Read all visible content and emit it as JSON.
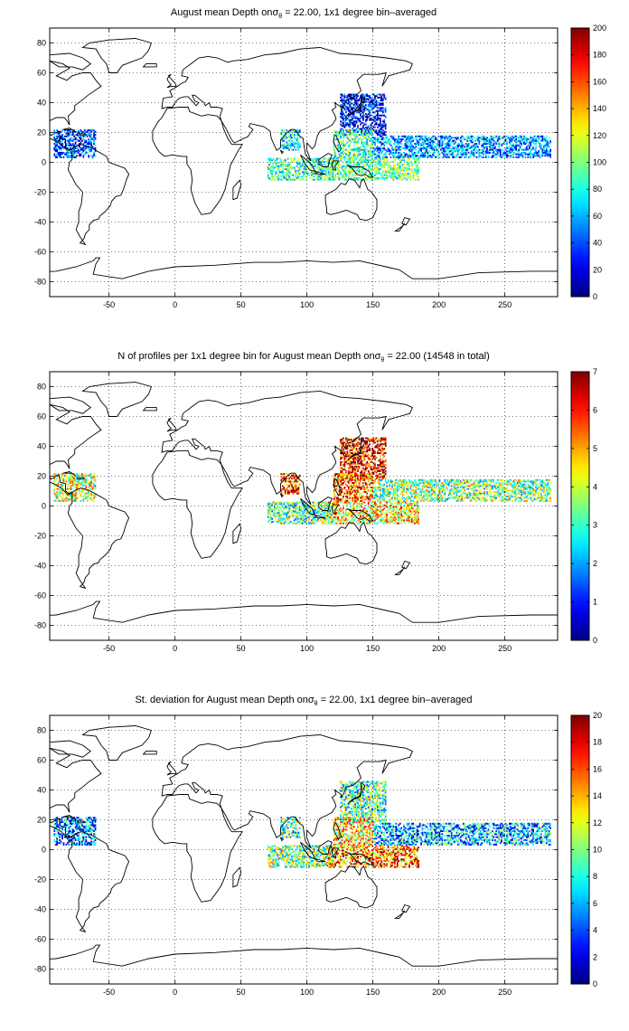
{
  "colors": {
    "land_outline": "#000000",
    "grid": "#000000",
    "background": "#ffffff",
    "colormap": "jet"
  },
  "chart_data": [
    {
      "type": "heatmap",
      "title_prefix": "August mean Depth on",
      "title_symbol": "σ",
      "title_subscript": "θ",
      "title_suffix": " = 22.00, 1x1 degree bin–averaged",
      "xlim": [
        -95,
        290
      ],
      "ylim": [
        -90,
        90
      ],
      "x_ticks": [
        -50,
        0,
        50,
        100,
        150,
        200,
        250
      ],
      "y_ticks": [
        80,
        60,
        40,
        20,
        0,
        -20,
        -40,
        -60,
        -80
      ],
      "grid": true,
      "colorbar": {
        "min": 0,
        "max": 200,
        "ticks": [
          0,
          20,
          40,
          60,
          80,
          100,
          120,
          140,
          160,
          180,
          200
        ],
        "placement": "right"
      },
      "regions": [
        {
          "name": "NW Pacific",
          "lon": [
            125,
            160
          ],
          "lat": [
            18,
            46
          ],
          "value": 25
        },
        {
          "name": "Philippine Sea",
          "lon": [
            120,
            150
          ],
          "lat": [
            3,
            22
          ],
          "value": 90
        },
        {
          "name": "Equatorial Pacific band",
          "lon": [
            150,
            285
          ],
          "lat": [
            3,
            18
          ],
          "value": 55
        },
        {
          "name": "Bay of Bengal",
          "lon": [
            80,
            95
          ],
          "lat": [
            8,
            22
          ],
          "value": 75
        },
        {
          "name": "Eastern Indian Ocean",
          "lon": [
            70,
            120
          ],
          "lat": [
            -12,
            3
          ],
          "value": 85
        },
        {
          "name": "Caribbean",
          "lon": [
            -92,
            -60
          ],
          "lat": [
            3,
            22
          ],
          "value": 35
        },
        {
          "name": "Western Equatorial Pacific",
          "lon": [
            115,
            185
          ],
          "lat": [
            -12,
            3
          ],
          "value": 95
        }
      ]
    },
    {
      "type": "heatmap",
      "title_prefix": "N of profiles per 1x1 degree bin for August mean Depth on",
      "title_symbol": "σ",
      "title_subscript": "θ",
      "title_suffix": " = 22.00 (14548 in total)",
      "xlim": [
        -95,
        290
      ],
      "ylim": [
        -90,
        90
      ],
      "x_ticks": [
        -50,
        0,
        50,
        100,
        150,
        200,
        250
      ],
      "y_ticks": [
        80,
        60,
        40,
        20,
        0,
        -20,
        -40,
        -60,
        -80
      ],
      "grid": true,
      "colorbar": {
        "min": 0,
        "max": 7,
        "ticks": [
          0,
          1,
          2,
          3,
          4,
          5,
          6,
          7
        ],
        "placement": "right"
      },
      "regions": [
        {
          "name": "NW Pacific",
          "lon": [
            125,
            160
          ],
          "lat": [
            18,
            46
          ],
          "value": 6.3
        },
        {
          "name": "Philippine Sea",
          "lon": [
            120,
            150
          ],
          "lat": [
            3,
            22
          ],
          "value": 5.5
        },
        {
          "name": "Equatorial Pacific band",
          "lon": [
            150,
            285
          ],
          "lat": [
            3,
            18
          ],
          "value": 3.5
        },
        {
          "name": "Bay of Bengal",
          "lon": [
            80,
            95
          ],
          "lat": [
            8,
            22
          ],
          "value": 5.8
        },
        {
          "name": "Eastern Indian Ocean",
          "lon": [
            70,
            120
          ],
          "lat": [
            -12,
            3
          ],
          "value": 3.2
        },
        {
          "name": "Caribbean",
          "lon": [
            -92,
            -60
          ],
          "lat": [
            3,
            22
          ],
          "value": 4.0
        },
        {
          "name": "Western Equatorial Pacific",
          "lon": [
            115,
            185
          ],
          "lat": [
            -12,
            3
          ],
          "value": 4.5
        }
      ]
    },
    {
      "type": "heatmap",
      "title_prefix": "St. deviation for August mean Depth on",
      "title_symbol": "σ",
      "title_subscript": "θ",
      "title_suffix": " = 22.00, 1x1 degree bin–averaged",
      "xlim": [
        -95,
        290
      ],
      "ylim": [
        -90,
        90
      ],
      "x_ticks": [
        -50,
        0,
        50,
        100,
        150,
        200,
        250
      ],
      "y_ticks": [
        80,
        60,
        40,
        20,
        0,
        -20,
        -40,
        -60,
        -80
      ],
      "grid": true,
      "colorbar": {
        "min": 0,
        "max": 20,
        "ticks": [
          0,
          2,
          4,
          6,
          8,
          10,
          12,
          14,
          16,
          18,
          20
        ],
        "placement": "right"
      },
      "regions": [
        {
          "name": "NW Pacific",
          "lon": [
            125,
            160
          ],
          "lat": [
            18,
            46
          ],
          "value": 9
        },
        {
          "name": "Philippine Sea",
          "lon": [
            120,
            150
          ],
          "lat": [
            3,
            22
          ],
          "value": 13
        },
        {
          "name": "Equatorial Pacific band",
          "lon": [
            150,
            285
          ],
          "lat": [
            3,
            18
          ],
          "value": 6
        },
        {
          "name": "Bay of Bengal",
          "lon": [
            80,
            95
          ],
          "lat": [
            8,
            22
          ],
          "value": 9
        },
        {
          "name": "Eastern Indian Ocean",
          "lon": [
            70,
            120
          ],
          "lat": [
            -12,
            3
          ],
          "value": 10
        },
        {
          "name": "Caribbean",
          "lon": [
            -92,
            -60
          ],
          "lat": [
            3,
            22
          ],
          "value": 5
        },
        {
          "name": "Western Equatorial Pacific",
          "lon": [
            115,
            185
          ],
          "lat": [
            -12,
            3
          ],
          "value": 15
        }
      ]
    }
  ]
}
